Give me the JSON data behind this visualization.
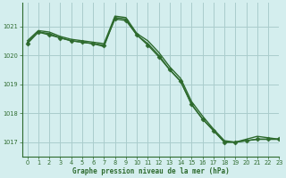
{
  "title": "Graphe pression niveau de la mer (hPa)",
  "bg_color": "#d4eeee",
  "grid_color": "#aacccc",
  "line_color": "#2d6a2d",
  "marker_color": "#2d6a2d",
  "xlim": [
    -0.5,
    23
  ],
  "ylim": [
    1016.5,
    1021.8
  ],
  "yticks": [
    1017,
    1018,
    1019,
    1020,
    1021
  ],
  "xticks": [
    0,
    1,
    2,
    3,
    4,
    5,
    6,
    7,
    8,
    9,
    10,
    11,
    12,
    13,
    14,
    15,
    16,
    17,
    18,
    19,
    20,
    21,
    22,
    23
  ],
  "series": [
    {
      "x": [
        0,
        1,
        2,
        3,
        4,
        5,
        6,
        7,
        8,
        9,
        10,
        11,
        12,
        13,
        14,
        15,
        16,
        17,
        18,
        19,
        20,
        21,
        22,
        23
      ],
      "y": [
        1020.4,
        1020.8,
        1020.7,
        1020.6,
        1020.5,
        1020.45,
        1020.4,
        1020.35,
        1021.25,
        1021.2,
        1020.7,
        1020.35,
        1019.95,
        1019.5,
        1019.1,
        1018.3,
        1017.8,
        1017.4,
        1017.0,
        1017.0,
        1017.05,
        1017.1,
        1017.1,
        1017.1
      ],
      "marker": "D",
      "markersize": 2.5,
      "lw": 1.0,
      "zorder": 4
    },
    {
      "x": [
        0,
        1,
        2,
        3,
        4,
        5,
        6,
        7,
        8,
        9,
        10,
        11,
        12,
        13,
        14,
        15,
        16,
        17,
        18,
        19,
        20,
        21,
        22,
        23
      ],
      "y": [
        1020.5,
        1020.85,
        1020.8,
        1020.65,
        1020.55,
        1020.5,
        1020.45,
        1020.4,
        1021.35,
        1021.3,
        1020.75,
        1020.5,
        1020.1,
        1019.6,
        1019.2,
        1018.4,
        1017.9,
        1017.45,
        1017.05,
        1017.0,
        1017.1,
        1017.2,
        1017.15,
        1017.1
      ],
      "marker": null,
      "markersize": 0,
      "lw": 1.0,
      "zorder": 3
    },
    {
      "x": [
        0,
        1,
        2,
        3,
        4,
        5,
        6,
        7,
        8,
        9,
        10,
        11,
        12,
        13,
        14,
        15,
        16,
        17,
        18,
        19,
        20,
        21,
        22,
        23
      ],
      "y": [
        1020.45,
        1020.8,
        1020.75,
        1020.6,
        1020.5,
        1020.45,
        1020.4,
        1020.3,
        1021.3,
        1021.25,
        1020.7,
        1020.4,
        1020.0,
        1019.5,
        1019.1,
        1018.3,
        1017.8,
        1017.4,
        1017.0,
        1017.0,
        1017.05,
        1017.1,
        1017.1,
        1017.1
      ],
      "marker": null,
      "markersize": 0,
      "lw": 1.0,
      "zorder": 2
    }
  ]
}
